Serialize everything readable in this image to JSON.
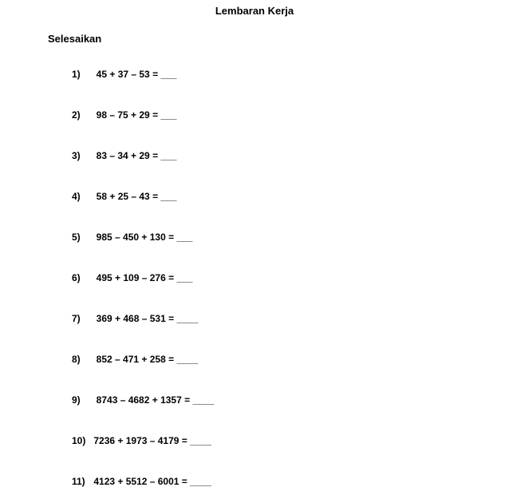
{
  "title": "Lembaran Kerja",
  "instruction": "Selesaikan",
  "blank_short": "___",
  "blank_long": "____",
  "problems": [
    {
      "n": "1)",
      "expr": "45 + 37 – 53 =",
      "blank": "___"
    },
    {
      "n": "2)",
      "expr": "98 – 75 + 29 =",
      "blank": "___"
    },
    {
      "n": "3)",
      "expr": "83 – 34 + 29 =",
      "blank": "___"
    },
    {
      "n": "4)",
      "expr": "58 + 25 – 43 =",
      "blank": "___"
    },
    {
      "n": "5)",
      "expr": "985 – 450 + 130 =",
      "blank": "___"
    },
    {
      "n": "6)",
      "expr": "495 + 109 – 276 =",
      "blank": "___"
    },
    {
      "n": "7)",
      "expr": "369 + 468 – 531 =",
      "blank": "____"
    },
    {
      "n": "8)",
      "expr": "852 – 471 + 258 =",
      "blank": "____"
    },
    {
      "n": "9)",
      "expr": "8743 – 4682 + 1357 =",
      "blank": "____"
    },
    {
      "n": "10)",
      "expr": "7236 + 1973 – 4179 =",
      "blank": "____"
    },
    {
      "n": "11)",
      "expr": "4123 + 5512 – 6001 =",
      "blank": "____"
    }
  ]
}
